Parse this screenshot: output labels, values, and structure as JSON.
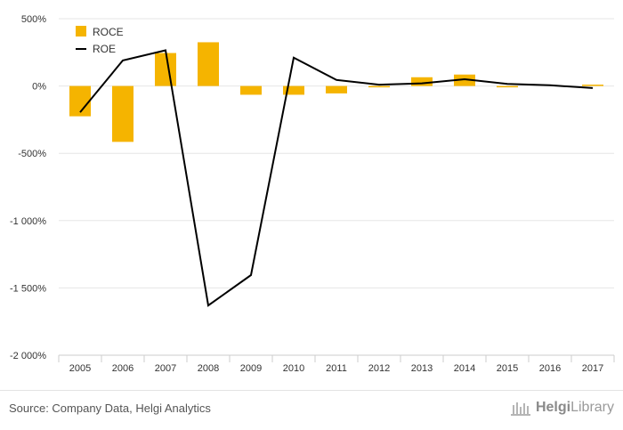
{
  "chart_data": {
    "type": "bar",
    "title": "",
    "xlabel": "",
    "ylabel": "",
    "categories": [
      "2005",
      "2006",
      "2007",
      "2008",
      "2009",
      "2010",
      "2011",
      "2012",
      "2013",
      "2014",
      "2015",
      "2016",
      "2017"
    ],
    "ylim": [
      -2000,
      500
    ],
    "yticks": [
      500,
      0,
      -500,
      -1000,
      -1500,
      -2000
    ],
    "ytick_labels": [
      "500%",
      "0%",
      "-500%",
      "-1 000%",
      "-1 500%",
      "-2 000%"
    ],
    "grid": true,
    "legend": "top-left",
    "series": [
      {
        "name": "ROCE",
        "type": "bar",
        "color": "#f5b400",
        "values": [
          -225,
          -415,
          245,
          325,
          -65,
          -65,
          -55,
          -10,
          65,
          85,
          -10,
          0,
          10
        ]
      },
      {
        "name": "ROE",
        "type": "line",
        "color": "#000000",
        "values": [
          -195,
          190,
          265,
          -1630,
          -1405,
          210,
          45,
          10,
          20,
          50,
          15,
          5,
          -15
        ]
      }
    ]
  },
  "footer": {
    "source": "Source: Company Data, Helgi Analytics",
    "brand_name": "HelgiLibrary",
    "brand_prefix": "Helgi",
    "brand_suffix": "Library"
  }
}
